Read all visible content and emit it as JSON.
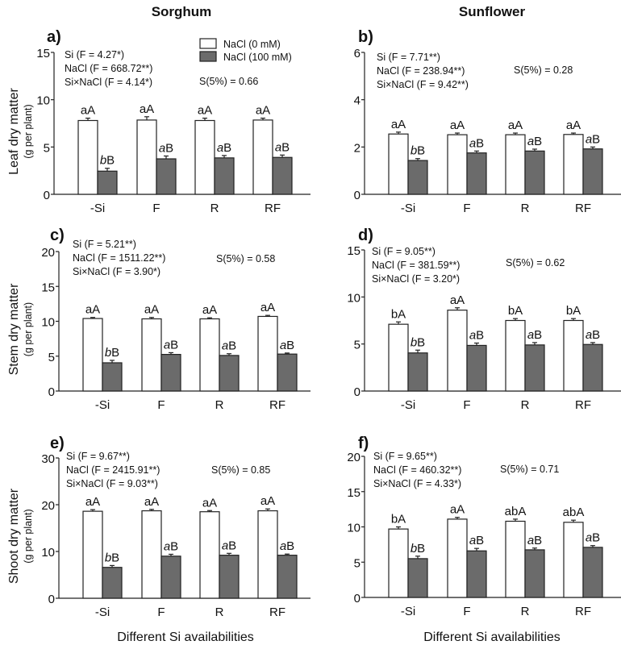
{
  "column_titles": [
    "Sorghum",
    "Sunflower"
  ],
  "legend": [
    {
      "label": "NaCl (0 mM)",
      "color": "#ffffff"
    },
    {
      "label": "NaCl (100 mM)",
      "color": "#6b6b6b"
    }
  ],
  "xlabel": "Different Si availabilities",
  "chart_data": [
    {
      "type": "bar",
      "panel": "a)",
      "crop": "Sorghum",
      "ylabel": "Leaf dry matter",
      "yunit": "(g per plant)",
      "ylim": [
        0,
        15
      ],
      "yticks": [
        0,
        5,
        10,
        15
      ],
      "categories": [
        "-Si",
        "F",
        "R",
        "RF"
      ],
      "series": [
        {
          "name": "NaCl (0 mM)",
          "values": [
            7.8,
            7.85,
            7.8,
            7.85
          ],
          "errors": [
            0.25,
            0.35,
            0.25,
            0.2
          ],
          "labels": [
            [
              "a",
              "A"
            ],
            [
              "a",
              "A"
            ],
            [
              "a",
              "A"
            ],
            [
              "a",
              "A"
            ]
          ]
        },
        {
          "name": "NaCl (100 mM)",
          "values": [
            2.45,
            3.75,
            3.85,
            3.9
          ],
          "errors": [
            0.3,
            0.3,
            0.25,
            0.25
          ],
          "labels": [
            [
              "b",
              "B"
            ],
            [
              "a",
              "B"
            ],
            [
              "a",
              "B"
            ],
            [
              "a",
              "B"
            ]
          ]
        }
      ],
      "stats": [
        "Si (F = 4.27*)",
        "NaCl (F = 668.72**)",
        "Si×NaCl (F = 4.14*)"
      ],
      "lsd": "S(5%) = 0.66"
    },
    {
      "type": "bar",
      "panel": "b)",
      "crop": "Sunflower",
      "ylabel": "",
      "yunit": "",
      "ylim": [
        0,
        6
      ],
      "yticks": [
        0,
        2,
        4,
        6
      ],
      "categories": [
        "-Si",
        "F",
        "R",
        "RF"
      ],
      "series": [
        {
          "name": "NaCl (0 mM)",
          "values": [
            2.55,
            2.52,
            2.52,
            2.53
          ],
          "errors": [
            0.08,
            0.07,
            0.07,
            0.06
          ],
          "labels": [
            [
              "a",
              "A"
            ],
            [
              "a",
              "A"
            ],
            [
              "a",
              "A"
            ],
            [
              "a",
              "A"
            ]
          ]
        },
        {
          "name": "NaCl (100 mM)",
          "values": [
            1.43,
            1.75,
            1.83,
            1.92
          ],
          "errors": [
            0.08,
            0.08,
            0.08,
            0.08
          ],
          "labels": [
            [
              "b",
              "B"
            ],
            [
              "a",
              "B"
            ],
            [
              "a",
              "B"
            ],
            [
              "a",
              "B"
            ]
          ]
        }
      ],
      "stats": [
        "Si (F = 7.71**)",
        "NaCl (F = 238.94**)",
        "Si×NaCl (F = 9.42**)"
      ],
      "lsd": "S(5%) = 0.28"
    },
    {
      "type": "bar",
      "panel": "c)",
      "crop": "Sorghum",
      "ylabel": "Stem dry matter",
      "yunit": "(g per plant)",
      "ylim": [
        0,
        20
      ],
      "yticks": [
        0,
        5,
        10,
        15,
        20
      ],
      "categories": [
        "-Si",
        "F",
        "R",
        "RF"
      ],
      "series": [
        {
          "name": "NaCl (0 mM)",
          "values": [
            10.4,
            10.35,
            10.35,
            10.7
          ],
          "errors": [
            0.15,
            0.2,
            0.15,
            0.15
          ],
          "labels": [
            [
              "a",
              "A"
            ],
            [
              "a",
              "A"
            ],
            [
              "a",
              "A"
            ],
            [
              "a",
              "A"
            ]
          ]
        },
        {
          "name": "NaCl (100 mM)",
          "values": [
            4.05,
            5.25,
            5.1,
            5.3
          ],
          "errors": [
            0.35,
            0.25,
            0.25,
            0.15
          ],
          "labels": [
            [
              "b",
              "B"
            ],
            [
              "a",
              "B"
            ],
            [
              "a",
              "B"
            ],
            [
              "a",
              "B"
            ]
          ]
        }
      ],
      "stats": [
        "Si (F = 5.21**)",
        "NaCl (F = 1511.22**)",
        "Si×NaCl (F = 3.90*)"
      ],
      "lsd": "S(5%) = 0.58"
    },
    {
      "type": "bar",
      "panel": "d)",
      "crop": "Sunflower",
      "ylabel": "",
      "yunit": "",
      "ylim": [
        0,
        15
      ],
      "yticks": [
        0,
        5,
        10,
        15
      ],
      "categories": [
        "-Si",
        "F",
        "R",
        "RF"
      ],
      "series": [
        {
          "name": "NaCl (0 mM)",
          "values": [
            7.1,
            8.6,
            7.5,
            7.5
          ],
          "errors": [
            0.25,
            0.25,
            0.2,
            0.2
          ],
          "labels": [
            [
              "b",
              "A"
            ],
            [
              "a",
              "A"
            ],
            [
              "b",
              "A"
            ],
            [
              "b",
              "A"
            ]
          ]
        },
        {
          "name": "NaCl (100 mM)",
          "values": [
            4.05,
            4.85,
            4.9,
            4.95
          ],
          "errors": [
            0.3,
            0.25,
            0.25,
            0.2
          ],
          "labels": [
            [
              "b",
              "B"
            ],
            [
              "a",
              "B"
            ],
            [
              "a",
              "B"
            ],
            [
              "a",
              "B"
            ]
          ]
        }
      ],
      "stats": [
        "Si (F = 9.05**)",
        "NaCl (F = 381.59**)",
        "Si×NaCl (F = 3.20*)"
      ],
      "lsd": "S(5%) = 0.62"
    },
    {
      "type": "bar",
      "panel": "e)",
      "crop": "Sorghum",
      "ylabel": "Shoot dry matter",
      "yunit": "(g per plant)",
      "ylim": [
        0,
        30
      ],
      "yticks": [
        0,
        10,
        20,
        30
      ],
      "categories": [
        "-Si",
        "F",
        "R",
        "RF"
      ],
      "series": [
        {
          "name": "NaCl (0 mM)",
          "values": [
            18.6,
            18.7,
            18.5,
            18.7
          ],
          "errors": [
            0.35,
            0.3,
            0.25,
            0.4
          ],
          "labels": [
            [
              "a",
              "A"
            ],
            [
              "a",
              "A"
            ],
            [
              "a",
              "A"
            ],
            [
              "a",
              "A"
            ]
          ]
        },
        {
          "name": "NaCl (100 mM)",
          "values": [
            6.6,
            9.0,
            9.2,
            9.2
          ],
          "errors": [
            0.4,
            0.4,
            0.4,
            0.25
          ],
          "labels": [
            [
              "b",
              "B"
            ],
            [
              "a",
              "B"
            ],
            [
              "a",
              "B"
            ],
            [
              "a",
              "B"
            ]
          ]
        }
      ],
      "stats": [
        "Si (F = 9.67**)",
        "NaCl (F = 2415.91**)",
        "Si×NaCl (F = 9.03**)"
      ],
      "lsd": "S(5%) = 0.85"
    },
    {
      "type": "bar",
      "panel": "f)",
      "crop": "Sunflower",
      "ylabel": "",
      "yunit": "",
      "ylim": [
        0,
        20
      ],
      "yticks": [
        0,
        5,
        10,
        15,
        20
      ],
      "categories": [
        "-Si",
        "F",
        "R",
        "RF"
      ],
      "series": [
        {
          "name": "NaCl (0 mM)",
          "values": [
            9.7,
            11.1,
            10.8,
            10.65
          ],
          "errors": [
            0.3,
            0.25,
            0.3,
            0.3
          ],
          "labels": [
            [
              "b",
              "A"
            ],
            [
              "a",
              "A"
            ],
            [
              "ab",
              "A"
            ],
            [
              "ab",
              "A"
            ]
          ]
        },
        {
          "name": "NaCl (100 mM)",
          "values": [
            5.5,
            6.6,
            6.75,
            7.1
          ],
          "errors": [
            0.35,
            0.35,
            0.25,
            0.25
          ],
          "labels": [
            [
              "b",
              "B"
            ],
            [
              "a",
              "B"
            ],
            [
              "a",
              "B"
            ],
            [
              "a",
              "B"
            ]
          ]
        }
      ],
      "stats": [
        "Si (F = 9.65**)",
        "NaCl (F = 460.32**)",
        "Si×NaCl (F = 4.33*)"
      ],
      "lsd": "S(5%) = 0.71"
    }
  ]
}
